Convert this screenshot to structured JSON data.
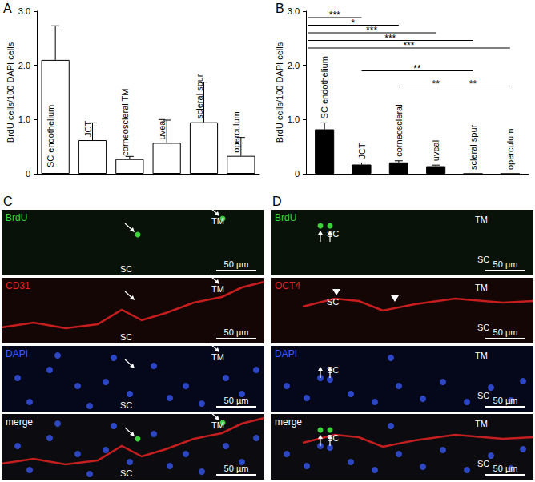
{
  "chart_data": [
    {
      "type": "bar",
      "title": "A",
      "y_label": "BrdU cells/100 DAPI cells",
      "categories": [
        "SC endothelium",
        "JCT",
        "corneoscleral TM",
        "uveal",
        "scleral spur",
        "operculum"
      ],
      "values": [
        2.1,
        0.62,
        0.27,
        0.57,
        0.95,
        0.33
      ],
      "errors": [
        0.63,
        0.32,
        0.05,
        0.42,
        0.74,
        0.34
      ],
      "color": "#ffffff",
      "ylim": [
        0,
        3
      ],
      "yticks": [
        0,
        {
          "value": 1,
          "label": "1.0"
        },
        {
          "value": 2,
          "label": "2.0"
        },
        {
          "value": 3,
          "label": "3.0"
        }
      ],
      "grid": false,
      "tick_labels": "y"
    },
    {
      "type": "bar",
      "title": "B",
      "y_label": "BrdU cells/100 DAPI cells",
      "categories": [
        "SC endothelium",
        "JCT",
        "corneoscleral",
        "uveal",
        "scleral spur",
        "operculum"
      ],
      "values": [
        0.82,
        0.17,
        0.21,
        0.14,
        0,
        0
      ],
      "errors": [
        0.12,
        0.03,
        0.03,
        0.02,
        0,
        0
      ],
      "color": "#000000",
      "ylim": [
        0,
        3
      ],
      "yticks": [
        0,
        {
          "value": 1,
          "label": "1.0"
        },
        {
          "value": 2,
          "label": "2.0"
        },
        {
          "value": 3,
          "label": "3.0"
        }
      ],
      "comparisons": [
        {
          "from": "SC endothelium",
          "to": "JCT",
          "label": "***"
        },
        {
          "from": "SC endothelium",
          "to": "corneoscleral",
          "label": "*"
        },
        {
          "from": "SC endothelium",
          "to": "uveal",
          "label": "***"
        },
        {
          "from": "SC endothelium",
          "to": "scleral spur",
          "label": "***"
        },
        {
          "from": "SC endothelium",
          "to": "operculum",
          "label": "***"
        },
        {
          "from": "JCT",
          "to": "scleral spur",
          "label": "**"
        },
        {
          "from": "corneoscleral",
          "to": "scleral spur",
          "label": "**"
        },
        {
          "from": "uveal",
          "to": "operculum",
          "label": "**"
        }
      ],
      "grid": false,
      "tick_labels": "y"
    }
  ],
  "image_panels": [
    {
      "title": "C",
      "strips": [
        {
          "channel": "BrdU",
          "color": "#3cd23c"
        },
        {
          "channel": "CD31",
          "color": "#e62222"
        },
        {
          "channel": "DAPI",
          "color": "#3a5cff"
        },
        {
          "channel": "merge",
          "color": "#ffffff"
        }
      ],
      "region_labels": [
        "TM",
        "SC"
      ],
      "scale_bar": "50 µm"
    },
    {
      "title": "D",
      "strips": [
        {
          "channel": "BrdU",
          "color": "#3cd23c"
        },
        {
          "channel": "OCT4",
          "color": "#e62222"
        },
        {
          "channel": "DAPI",
          "color": "#3a5cff"
        },
        {
          "channel": "merge",
          "color": "#ffffff"
        }
      ],
      "region_labels": [
        "TM",
        "SC",
        "SC"
      ],
      "scale_bar": "50 µm"
    }
  ]
}
